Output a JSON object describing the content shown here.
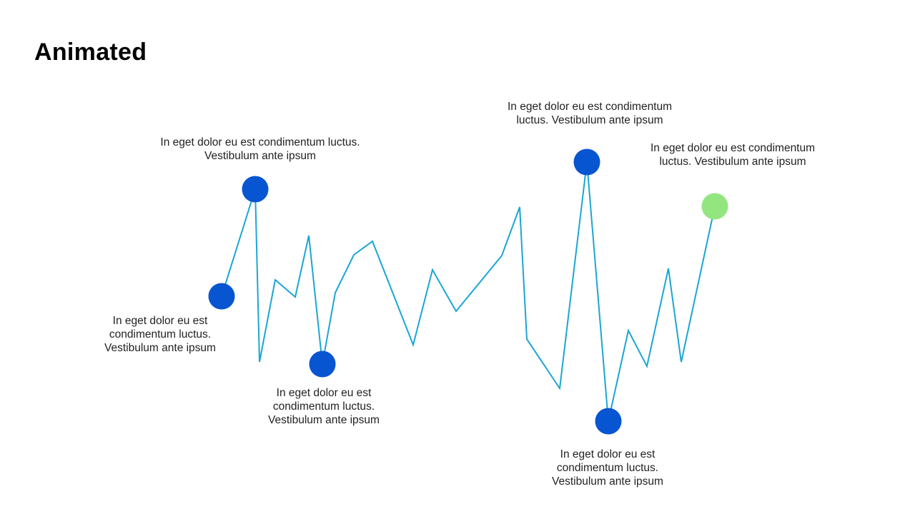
{
  "title": "Animated",
  "colors": {
    "line": "#1aa6d4",
    "marker": "#0755d1",
    "marker_highlight": "#93e67f",
    "title": "#000000",
    "text": "#222222"
  },
  "annotations": [
    {
      "text": "In eget dolor eu est condimentum luctus. Vestibulum ante ipsum"
    },
    {
      "text": "In eget dolor eu est condimentum luctus. Vestibulum ante ipsum"
    },
    {
      "text": "In eget dolor eu est condimentum luctus. Vestibulum ante ipsum"
    },
    {
      "text": "In eget dolor eu est condimentum luctus. Vestibulum ante ipsum"
    },
    {
      "text": "In eget dolor eu est condimentum luctus. Vestibulum ante ipsum"
    },
    {
      "text": "In eget dolor eu est condimentum luctus. Vestibulum ante ipsum"
    }
  ]
}
